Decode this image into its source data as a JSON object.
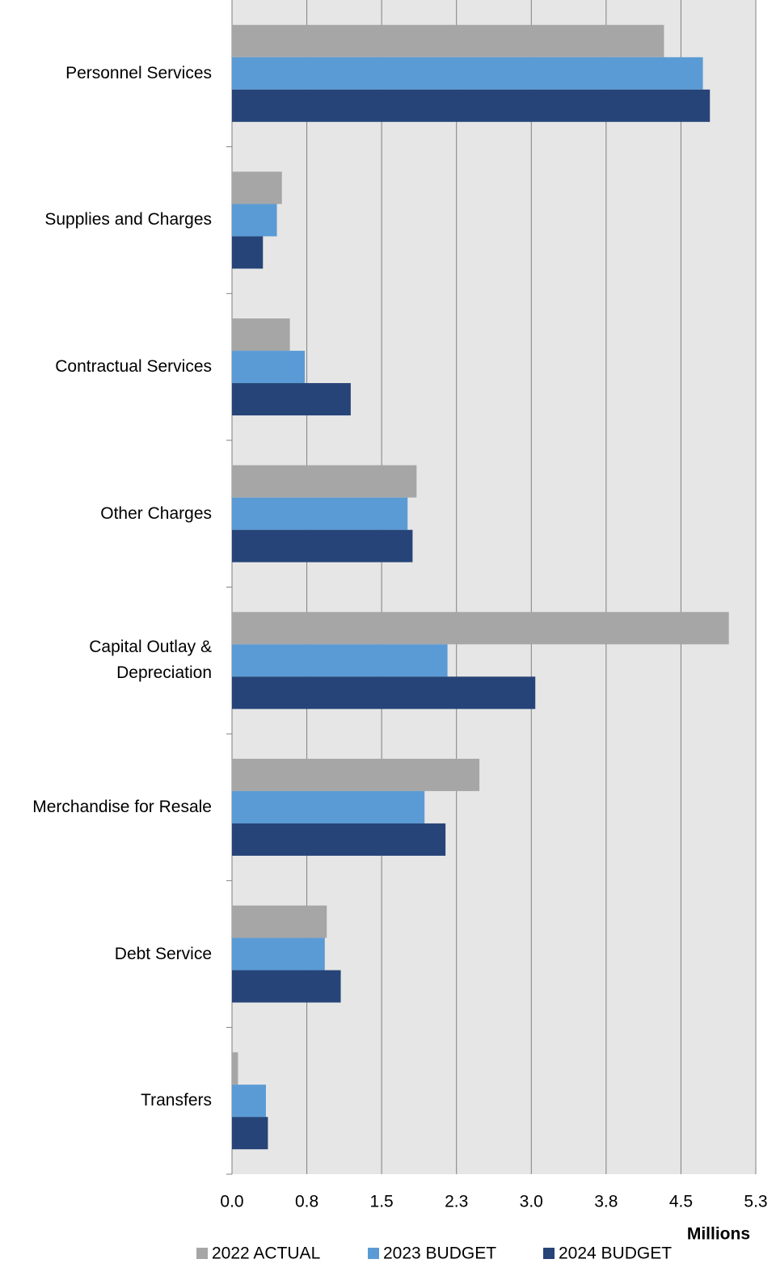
{
  "chart_data": {
    "type": "barh",
    "categories": [
      "Personnel Services",
      "Supplies and Charges",
      "Contractual Services",
      "Other Charges",
      "Capital Outlay & Depreciation",
      "Merchandise for Resale",
      "Debt Service",
      "Transfers"
    ],
    "series": [
      {
        "name": "2022 ACTUAL",
        "color": "#a6a6a6",
        "values": [
          4.33,
          0.5,
          0.58,
          1.85,
          4.98,
          2.48,
          0.95,
          0.06
        ]
      },
      {
        "name": "2023 BUDGET",
        "color": "#5b9bd5",
        "values": [
          4.72,
          0.45,
          0.73,
          1.76,
          2.16,
          1.93,
          0.93,
          0.34
        ]
      },
      {
        "name": "2024 BUDGET",
        "color": "#264478",
        "values": [
          4.79,
          0.31,
          1.19,
          1.81,
          3.04,
          2.14,
          1.09,
          0.36
        ]
      }
    ],
    "xlabel": "Millions",
    "xlim": [
      0,
      5.25
    ],
    "xticks": [
      {
        "value": 0,
        "label": "0.0"
      },
      {
        "value": 0.75,
        "label": "0.8"
      },
      1.5,
      {
        "value": 2.25,
        "label": "2.3"
      },
      {
        "value": 3,
        "label": "3.0"
      },
      {
        "value": 3.75,
        "label": "3.8"
      },
      4.5,
      {
        "value": 5.25,
        "label": "5.3"
      }
    ],
    "grid": true,
    "legend": "bottom"
  }
}
